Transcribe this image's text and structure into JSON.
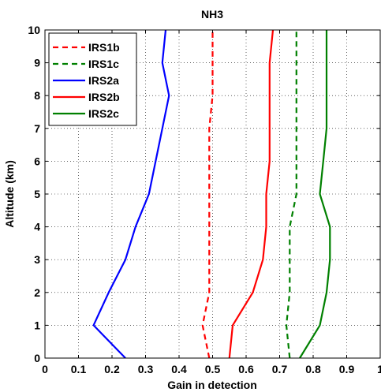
{
  "chart_data": {
    "type": "line",
    "title": "NH3",
    "xlabel": "Gain in detection",
    "ylabel": "Altitude (km)",
    "xlim": [
      0,
      1
    ],
    "ylim": [
      0,
      10
    ],
    "xticks": [
      "0",
      "0.1",
      "0.2",
      "0.3",
      "0.4",
      "0.5",
      "0.6",
      "0.7",
      "0.8",
      "0.9",
      "1"
    ],
    "yticks": [
      "0",
      "1",
      "2",
      "3",
      "4",
      "5",
      "6",
      "7",
      "8",
      "9",
      "10"
    ],
    "grid": true,
    "legend_position": "top-left",
    "series": [
      {
        "name": "IRS1b",
        "color": "#ff0000",
        "dash": "dashed",
        "points": [
          [
            0.49,
            0
          ],
          [
            0.47,
            1
          ],
          [
            0.49,
            2
          ],
          [
            0.49,
            3
          ],
          [
            0.49,
            4
          ],
          [
            0.49,
            5
          ],
          [
            0.49,
            6
          ],
          [
            0.49,
            7
          ],
          [
            0.5,
            8
          ],
          [
            0.5,
            9
          ],
          [
            0.5,
            10
          ]
        ]
      },
      {
        "name": "IRS1c",
        "color": "#008000",
        "dash": "dashed",
        "points": [
          [
            0.73,
            0
          ],
          [
            0.72,
            1
          ],
          [
            0.73,
            2
          ],
          [
            0.73,
            3
          ],
          [
            0.73,
            4
          ],
          [
            0.75,
            5
          ],
          [
            0.75,
            6
          ],
          [
            0.75,
            7
          ],
          [
            0.75,
            8
          ],
          [
            0.75,
            9
          ],
          [
            0.75,
            10
          ]
        ]
      },
      {
        "name": "IRS2a",
        "color": "#0000ff",
        "dash": "solid",
        "points": [
          [
            0.24,
            0
          ],
          [
            0.145,
            1
          ],
          [
            0.19,
            2
          ],
          [
            0.24,
            3
          ],
          [
            0.27,
            4
          ],
          [
            0.31,
            5
          ],
          [
            0.33,
            6
          ],
          [
            0.35,
            7
          ],
          [
            0.37,
            8
          ],
          [
            0.35,
            9
          ],
          [
            0.36,
            10
          ]
        ]
      },
      {
        "name": "IRS2b",
        "color": "#ff0000",
        "dash": "solid",
        "points": [
          [
            0.55,
            0
          ],
          [
            0.56,
            1
          ],
          [
            0.62,
            2
          ],
          [
            0.65,
            3
          ],
          [
            0.66,
            4
          ],
          [
            0.66,
            5
          ],
          [
            0.67,
            6
          ],
          [
            0.67,
            7
          ],
          [
            0.67,
            8
          ],
          [
            0.67,
            9
          ],
          [
            0.68,
            10
          ]
        ]
      },
      {
        "name": "IRS2c",
        "color": "#008000",
        "dash": "solid",
        "points": [
          [
            0.76,
            0
          ],
          [
            0.82,
            1
          ],
          [
            0.84,
            2
          ],
          [
            0.85,
            3
          ],
          [
            0.85,
            4
          ],
          [
            0.82,
            5
          ],
          [
            0.83,
            6
          ],
          [
            0.84,
            7
          ],
          [
            0.84,
            8
          ],
          [
            0.84,
            9
          ],
          [
            0.84,
            10
          ]
        ]
      }
    ]
  }
}
